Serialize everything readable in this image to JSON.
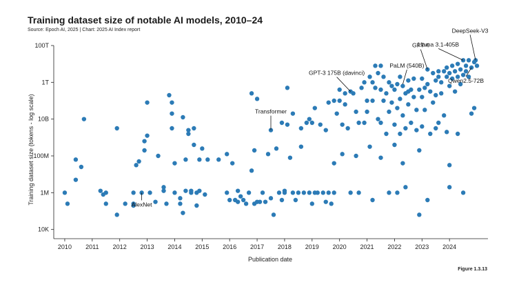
{
  "header": {
    "title": "Training dataset size of notable AI models, 2010–24",
    "source": "Source: Epoch AI, 2025 | Chart: 2025 AI Index report"
  },
  "footer": {
    "figure_label": "Figure 1.3.13"
  },
  "colors": {
    "point": "#2c7bb6",
    "axis": "#222222",
    "text": "#1a1a1a"
  },
  "chart_data": {
    "type": "scatter",
    "title": "Training dataset size of notable AI models, 2010–24",
    "xlabel": "Publication date",
    "ylabel": "Training dataset size (tokens - log scale)",
    "xlim": [
      2009.6,
      2025.4
    ],
    "ylim_log10": [
      3.5,
      14.0
    ],
    "y_scale": "log",
    "grid": false,
    "x_ticks": [
      {
        "value": 2010,
        "label": "2010"
      },
      {
        "value": 2011,
        "label": "2011"
      },
      {
        "value": 2012,
        "label": "2012"
      },
      {
        "value": 2013,
        "label": "2013"
      },
      {
        "value": 2014,
        "label": "2014"
      },
      {
        "value": 2015,
        "label": "2015"
      },
      {
        "value": 2016,
        "label": "2016"
      },
      {
        "value": 2017,
        "label": "2017"
      },
      {
        "value": 2018,
        "label": "2018"
      },
      {
        "value": 2019,
        "label": "2019"
      },
      {
        "value": 2020,
        "label": "2020"
      },
      {
        "value": 2021,
        "label": "2021"
      },
      {
        "value": 2022,
        "label": "2022"
      },
      {
        "value": 2023,
        "label": "2023"
      },
      {
        "value": 2024,
        "label": "2024"
      }
    ],
    "y_ticks": [
      {
        "log10": 4,
        "label": "10K"
      },
      {
        "log10": 6,
        "label": "1M"
      },
      {
        "log10": 8,
        "label": "100M"
      },
      {
        "log10": 10,
        "label": "10B"
      },
      {
        "log10": 12,
        "label": "1T"
      },
      {
        "log10": 14,
        "label": "100T"
      }
    ],
    "annotations": [
      {
        "label": "AlexNet",
        "x": 2012.8,
        "y_log10": 6.0
      },
      {
        "label": "Transformer",
        "x": 2017.5,
        "y_log10": 9.4
      },
      {
        "label": "GPT-3 175B (davinci)",
        "x": 2020.4,
        "y_log10": 11.5
      },
      {
        "label": "PaLM (540B)",
        "x": 2022.3,
        "y_log10": 11.9
      },
      {
        "label": "GPT-4",
        "x": 2023.2,
        "y_log10": 12.7
      },
      {
        "label": "Llama 3.1-405B",
        "x": 2024.5,
        "y_log10": 13.2
      },
      {
        "label": "DeepSeek-V3",
        "x": 2024.95,
        "y_log10": 13.2
      },
      {
        "label": "Qwen2.5-72B",
        "x": 2024.8,
        "y_log10": 12.8
      }
    ],
    "points": [
      [
        2010.0,
        6.0
      ],
      [
        2010.1,
        5.4
      ],
      [
        2010.4,
        6.7
      ],
      [
        2010.4,
        7.8
      ],
      [
        2010.6,
        7.4
      ],
      [
        2010.7,
        10.0
      ],
      [
        2011.3,
        6.1
      ],
      [
        2011.4,
        5.9
      ],
      [
        2011.5,
        5.4
      ],
      [
        2011.5,
        6.0
      ],
      [
        2011.9,
        9.5
      ],
      [
        2011.9,
        4.8
      ],
      [
        2012.2,
        5.4
      ],
      [
        2012.5,
        5.4
      ],
      [
        2012.5,
        5.3
      ],
      [
        2012.5,
        6.0
      ],
      [
        2012.6,
        7.5
      ],
      [
        2012.7,
        7.7
      ],
      [
        2012.8,
        6.0
      ],
      [
        2012.9,
        8.3
      ],
      [
        2012.9,
        8.8
      ],
      [
        2013.0,
        10.9
      ],
      [
        2013.0,
        9.1
      ],
      [
        2013.1,
        6.0
      ],
      [
        2013.3,
        5.5
      ],
      [
        2013.4,
        8.0
      ],
      [
        2013.6,
        6.3
      ],
      [
        2013.6,
        6.1
      ],
      [
        2013.7,
        5.4
      ],
      [
        2013.8,
        11.3
      ],
      [
        2013.9,
        10.9
      ],
      [
        2013.9,
        10.3
      ],
      [
        2013.9,
        9.5
      ],
      [
        2014.0,
        7.6
      ],
      [
        2014.0,
        6.0
      ],
      [
        2014.2,
        5.7
      ],
      [
        2014.2,
        5.4
      ],
      [
        2014.3,
        4.9
      ],
      [
        2014.3,
        10.1
      ],
      [
        2014.4,
        6.1
      ],
      [
        2014.4,
        7.8
      ],
      [
        2014.5,
        9.4
      ],
      [
        2014.5,
        9.2
      ],
      [
        2014.6,
        6.0
      ],
      [
        2014.6,
        6.1
      ],
      [
        2014.7,
        9.5
      ],
      [
        2014.7,
        8.6
      ],
      [
        2014.8,
        5.3
      ],
      [
        2014.8,
        6.0
      ],
      [
        2014.9,
        6.1
      ],
      [
        2014.9,
        7.8
      ],
      [
        2015.0,
        8.4
      ],
      [
        2015.1,
        5.9
      ],
      [
        2015.2,
        7.8
      ],
      [
        2015.6,
        7.8
      ],
      [
        2015.9,
        8.1
      ],
      [
        2015.9,
        6.0
      ],
      [
        2016.0,
        5.6
      ],
      [
        2016.1,
        7.6
      ],
      [
        2016.2,
        5.6
      ],
      [
        2016.3,
        5.5
      ],
      [
        2016.3,
        6.1
      ],
      [
        2016.4,
        5.8
      ],
      [
        2016.5,
        5.6
      ],
      [
        2016.6,
        5.4
      ],
      [
        2016.7,
        6.0
      ],
      [
        2016.8,
        11.4
      ],
      [
        2016.8,
        7.2
      ],
      [
        2016.9,
        5.4
      ],
      [
        2016.9,
        8.3
      ],
      [
        2017.0,
        11.1
      ],
      [
        2017.0,
        5.5
      ],
      [
        2017.1,
        5.5
      ],
      [
        2017.2,
        6.0
      ],
      [
        2017.3,
        5.5
      ],
      [
        2017.4,
        8.1
      ],
      [
        2017.5,
        9.4
      ],
      [
        2017.5,
        5.7
      ],
      [
        2017.6,
        4.8
      ],
      [
        2017.7,
        8.4
      ],
      [
        2017.8,
        6.0
      ],
      [
        2017.9,
        9.8
      ],
      [
        2017.9,
        5.6
      ],
      [
        2018.0,
        6.1
      ],
      [
        2018.0,
        6.0
      ],
      [
        2018.1,
        11.7
      ],
      [
        2018.1,
        9.7
      ],
      [
        2018.2,
        7.9
      ],
      [
        2018.3,
        6.0
      ],
      [
        2018.3,
        10.3
      ],
      [
        2018.4,
        5.6
      ],
      [
        2018.5,
        6.0
      ],
      [
        2018.6,
        9.5
      ],
      [
        2018.6,
        8.5
      ],
      [
        2018.7,
        6.0
      ],
      [
        2018.8,
        9.8
      ],
      [
        2018.9,
        10.0
      ],
      [
        2018.9,
        6.0
      ],
      [
        2019.0,
        5.4
      ],
      [
        2019.0,
        9.8
      ],
      [
        2019.1,
        6.0
      ],
      [
        2019.1,
        10.6
      ],
      [
        2019.2,
        6.0
      ],
      [
        2019.3,
        9.7
      ],
      [
        2019.4,
        6.0
      ],
      [
        2019.5,
        9.4
      ],
      [
        2019.5,
        5.5
      ],
      [
        2019.6,
        10.9
      ],
      [
        2019.6,
        6.0
      ],
      [
        2019.7,
        5.4
      ],
      [
        2019.8,
        11.0
      ],
      [
        2019.8,
        7.6
      ],
      [
        2019.8,
        6.0
      ],
      [
        2019.9,
        10.3
      ],
      [
        2020.0,
        11.6
      ],
      [
        2020.0,
        11.0
      ],
      [
        2020.1,
        8.1
      ],
      [
        2020.1,
        9.7
      ],
      [
        2020.2,
        11.4
      ],
      [
        2020.2,
        10.8
      ],
      [
        2020.3,
        9.5
      ],
      [
        2020.4,
        11.5
      ],
      [
        2020.4,
        6.0
      ],
      [
        2020.5,
        11.4
      ],
      [
        2020.6,
        10.4
      ],
      [
        2020.6,
        8.0
      ],
      [
        2020.7,
        6.0
      ],
      [
        2020.7,
        9.8
      ],
      [
        2020.8,
        11.7
      ],
      [
        2020.9,
        12.0
      ],
      [
        2020.9,
        9.8
      ],
      [
        2021.0,
        11.0
      ],
      [
        2021.0,
        10.4
      ],
      [
        2021.1,
        12.3
      ],
      [
        2021.1,
        8.5
      ],
      [
        2021.2,
        12.0
      ],
      [
        2021.2,
        11.0
      ],
      [
        2021.2,
        5.6
      ],
      [
        2021.3,
        12.9
      ],
      [
        2021.3,
        11.7
      ],
      [
        2021.4,
        12.5
      ],
      [
        2021.4,
        10.0
      ],
      [
        2021.5,
        12.9
      ],
      [
        2021.5,
        11.6
      ],
      [
        2021.5,
        9.8
      ],
      [
        2021.5,
        7.9
      ],
      [
        2021.6,
        12.3
      ],
      [
        2021.6,
        11.0
      ],
      [
        2021.7,
        11.4
      ],
      [
        2021.7,
        9.2
      ],
      [
        2021.8,
        12.0
      ],
      [
        2021.8,
        10.4
      ],
      [
        2021.8,
        6.0
      ],
      [
        2021.9,
        11.8
      ],
      [
        2021.9,
        10.9
      ],
      [
        2022.0,
        11.6
      ],
      [
        2022.0,
        9.7
      ],
      [
        2022.0,
        8.6
      ],
      [
        2022.1,
        11.9
      ],
      [
        2022.1,
        10.6
      ],
      [
        2022.1,
        6.0
      ],
      [
        2022.2,
        12.3
      ],
      [
        2022.2,
        11.1
      ],
      [
        2022.2,
        9.2
      ],
      [
        2022.3,
        11.8
      ],
      [
        2022.3,
        10.2
      ],
      [
        2022.3,
        7.6
      ],
      [
        2022.4,
        11.4
      ],
      [
        2022.4,
        9.5
      ],
      [
        2022.4,
        6.3
      ],
      [
        2022.5,
        12.1
      ],
      [
        2022.5,
        11.5
      ],
      [
        2022.5,
        10.8
      ],
      [
        2022.6,
        11.6
      ],
      [
        2022.6,
        9.8
      ],
      [
        2022.7,
        12.2
      ],
      [
        2022.7,
        11.2
      ],
      [
        2022.8,
        10.5
      ],
      [
        2022.8,
        9.4
      ],
      [
        2022.9,
        11.6
      ],
      [
        2022.9,
        8.3
      ],
      [
        2022.9,
        4.8
      ],
      [
        2023.0,
        12.2
      ],
      [
        2023.0,
        11.2
      ],
      [
        2023.0,
        9.6
      ],
      [
        2023.1,
        11.7
      ],
      [
        2023.1,
        10.5
      ],
      [
        2023.2,
        12.7
      ],
      [
        2023.2,
        11.9
      ],
      [
        2023.2,
        5.6
      ],
      [
        2023.3,
        11.5
      ],
      [
        2023.3,
        9.2
      ],
      [
        2023.4,
        12.5
      ],
      [
        2023.4,
        10.9
      ],
      [
        2023.5,
        12.1
      ],
      [
        2023.5,
        11.3
      ],
      [
        2023.5,
        9.5
      ],
      [
        2023.6,
        12.6
      ],
      [
        2023.6,
        12.3
      ],
      [
        2023.6,
        9.8
      ],
      [
        2023.7,
        12.0
      ],
      [
        2023.7,
        11.4
      ],
      [
        2023.8,
        12.6
      ],
      [
        2023.8,
        10.2
      ],
      [
        2023.9,
        12.8
      ],
      [
        2023.9,
        12.3
      ],
      [
        2023.9,
        9.3
      ],
      [
        2024.0,
        12.5
      ],
      [
        2024.0,
        11.8
      ],
      [
        2024.0,
        7.5
      ],
      [
        2024.0,
        6.3
      ],
      [
        2024.1,
        12.9
      ],
      [
        2024.1,
        12.2
      ],
      [
        2024.2,
        12.6
      ],
      [
        2024.2,
        11.5
      ],
      [
        2024.3,
        13.0
      ],
      [
        2024.3,
        12.3
      ],
      [
        2024.3,
        9.2
      ],
      [
        2024.4,
        12.7
      ],
      [
        2024.4,
        11.9
      ],
      [
        2024.5,
        13.2
      ],
      [
        2024.5,
        12.4
      ],
      [
        2024.5,
        6.0
      ],
      [
        2024.6,
        12.9
      ],
      [
        2024.6,
        12.6
      ],
      [
        2024.7,
        13.2
      ],
      [
        2024.7,
        12.3
      ],
      [
        2024.8,
        12.8
      ],
      [
        2024.8,
        10.3
      ],
      [
        2024.9,
        13.1
      ],
      [
        2024.9,
        10.6
      ],
      [
        2024.95,
        13.2
      ],
      [
        2025.0,
        12.9
      ]
    ]
  }
}
